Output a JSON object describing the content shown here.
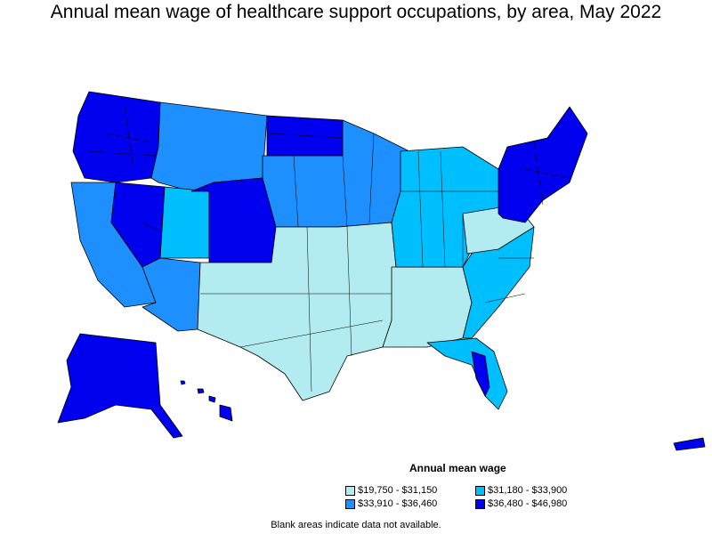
{
  "title": "Annual mean wage of healthcare support occupations, by area, May 2022",
  "legend": {
    "title": "Annual mean wage",
    "items": [
      {
        "label": "$19,750 - $31,150",
        "color": "#b2ebf0"
      },
      {
        "label": "$31,180 - $33,900",
        "color": "#00bfff"
      },
      {
        "label": "$33,910 - $36,460",
        "color": "#1e8fff"
      },
      {
        "label": "$36,480 - $46,980",
        "color": "#0000ee"
      }
    ]
  },
  "note": "Blank areas indicate data not available.",
  "colors": {
    "low": "#b2ebf0",
    "mid_low": "#00bfff",
    "mid_high": "#1e8fff",
    "high": "#0000ee",
    "border": "#000000"
  }
}
